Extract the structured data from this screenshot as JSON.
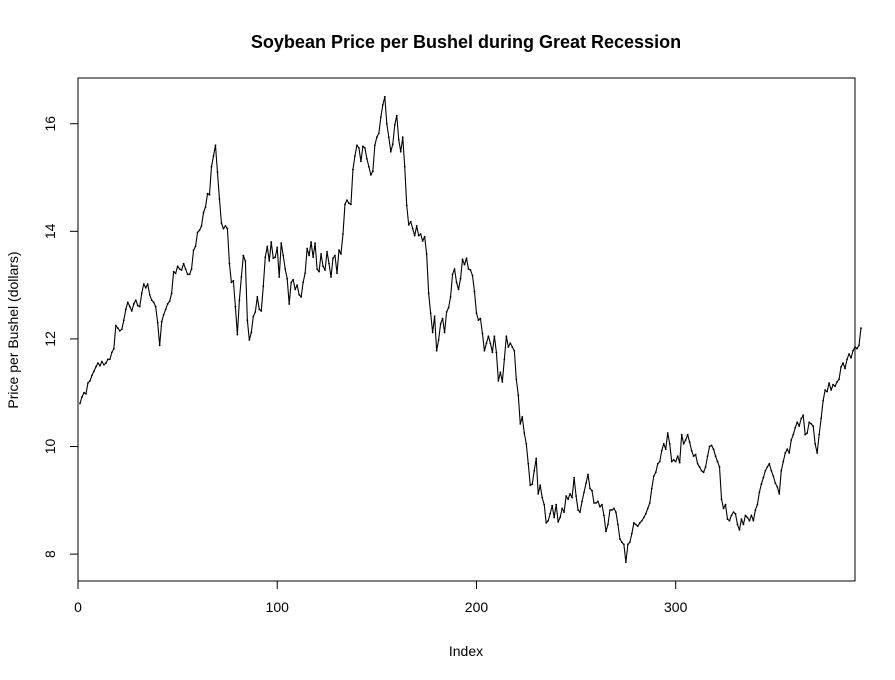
{
  "chart_data": {
    "type": "line",
    "title": "Soybean Price per Bushel during Great Recession",
    "xlabel": "Index",
    "ylabel": "Price per Bushel (dollars)",
    "xlim": [
      0,
      390
    ],
    "ylim": [
      7.5,
      16.85
    ],
    "x_ticks": [
      0,
      100,
      200,
      300
    ],
    "x_tick_labels": [
      "0",
      "100",
      "200",
      "300"
    ],
    "y_ticks": [
      8,
      10,
      12,
      14,
      16
    ],
    "y_tick_labels": [
      "8",
      "10",
      "12",
      "14",
      "16"
    ],
    "series": [
      {
        "x_start": 1,
        "marker": "point",
        "values": [
          10.8,
          10.92,
          11.0,
          10.98,
          11.18,
          11.22,
          11.32,
          11.4,
          11.48,
          11.55,
          11.5,
          11.58,
          11.52,
          11.55,
          11.62,
          11.62,
          11.75,
          11.82,
          12.25,
          12.2,
          12.15,
          12.18,
          12.35,
          12.55,
          12.68,
          12.6,
          12.52,
          12.65,
          12.72,
          12.62,
          12.6,
          12.85,
          13.02,
          12.95,
          13.02,
          12.82,
          12.72,
          12.68,
          12.6,
          12.3,
          11.88,
          12.32,
          12.45,
          12.55,
          12.65,
          12.7,
          12.85,
          13.25,
          13.22,
          13.35,
          13.3,
          13.28,
          13.4,
          13.3,
          13.2,
          13.2,
          13.3,
          13.65,
          13.72,
          13.98,
          14.02,
          14.1,
          14.35,
          14.45,
          14.7,
          14.68,
          15.2,
          15.4,
          15.6,
          15.1,
          14.6,
          14.15,
          14.05,
          14.1,
          14.05,
          13.4,
          13.05,
          13.08,
          12.6,
          12.08,
          12.72,
          13.15,
          13.55,
          13.45,
          12.35,
          11.98,
          12.12,
          12.42,
          12.5,
          12.78,
          12.55,
          12.52,
          12.98,
          13.52,
          13.72,
          13.45,
          13.8,
          13.5,
          13.52,
          13.7,
          13.15,
          13.78,
          13.55,
          13.3,
          13.12,
          12.65,
          13.05,
          13.1,
          12.92,
          13.0,
          12.82,
          12.78,
          13.05,
          13.22,
          13.68,
          13.55,
          13.8,
          13.52,
          13.78,
          13.3,
          13.25,
          13.58,
          13.35,
          13.28,
          13.62,
          13.4,
          13.15,
          13.5,
          13.55,
          13.22,
          13.65,
          13.58,
          13.95,
          14.5,
          14.58,
          14.52,
          14.5,
          15.15,
          15.4,
          15.6,
          15.55,
          15.3,
          15.58,
          15.55,
          15.35,
          15.2,
          15.05,
          15.12,
          15.6,
          15.75,
          15.82,
          16.12,
          16.35,
          16.5,
          16.0,
          15.75,
          15.48,
          15.62,
          15.98,
          16.15,
          15.7,
          15.48,
          15.75,
          15.2,
          14.48,
          14.12,
          14.18,
          14.05,
          13.92,
          14.1,
          13.92,
          13.95,
          13.82,
          13.9,
          13.58,
          12.85,
          12.48,
          12.12,
          12.42,
          11.78,
          11.98,
          12.28,
          12.38,
          12.12,
          12.5,
          12.58,
          12.78,
          13.2,
          13.3,
          13.05,
          12.92,
          13.12,
          13.48,
          13.38,
          13.5,
          13.3,
          13.28,
          13.18,
          12.88,
          12.48,
          12.35,
          12.38,
          12.1,
          11.78,
          11.92,
          12.05,
          11.92,
          11.75,
          12.05,
          11.75,
          11.22,
          11.38,
          11.2,
          11.62,
          12.05,
          11.85,
          11.92,
          11.85,
          11.78,
          11.25,
          10.95,
          10.42,
          10.55,
          10.25,
          10.05,
          9.68,
          9.28,
          9.3,
          9.55,
          9.78,
          9.12,
          9.28,
          9.05,
          8.92,
          8.58,
          8.62,
          8.75,
          8.9,
          8.68,
          8.92,
          8.6,
          8.68,
          8.85,
          8.78,
          9.08,
          9.02,
          9.12,
          9.05,
          9.42,
          9.08,
          8.82,
          8.78,
          8.98,
          9.15,
          9.32,
          9.48,
          9.22,
          9.18,
          8.95,
          8.95,
          8.98,
          8.88,
          8.92,
          8.72,
          8.42,
          8.55,
          8.82,
          8.82,
          8.85,
          8.78,
          8.55,
          8.28,
          8.22,
          8.18,
          7.85,
          8.18,
          8.22,
          8.38,
          8.58,
          8.55,
          8.52,
          8.58,
          8.62,
          8.68,
          8.75,
          8.85,
          8.95,
          9.22,
          9.45,
          9.52,
          9.68,
          9.72,
          9.92,
          10.05,
          9.95,
          10.25,
          10.05,
          9.72,
          9.75,
          9.72,
          9.82,
          9.7,
          10.22,
          10.05,
          10.12,
          10.22,
          10.08,
          9.92,
          9.82,
          9.85,
          9.68,
          9.62,
          9.55,
          9.52,
          9.62,
          9.82,
          10.0,
          10.02,
          9.95,
          9.82,
          9.72,
          9.62,
          9.02,
          8.85,
          8.92,
          8.65,
          8.62,
          8.72,
          8.78,
          8.75,
          8.55,
          8.45,
          8.65,
          8.55,
          8.72,
          8.68,
          8.62,
          8.72,
          8.62,
          8.82,
          8.92,
          9.15,
          9.3,
          9.42,
          9.55,
          9.62,
          9.68,
          9.55,
          9.45,
          9.32,
          9.25,
          9.12,
          9.55,
          9.72,
          9.88,
          9.95,
          9.88,
          10.12,
          10.22,
          10.35,
          10.45,
          10.38,
          10.52,
          10.58,
          10.22,
          10.25,
          10.45,
          10.42,
          10.38,
          10.05,
          9.88,
          10.22,
          10.52,
          10.85,
          11.05,
          11.02,
          11.18,
          11.05,
          11.15,
          11.12,
          11.2,
          11.25,
          11.48,
          11.55,
          11.45,
          11.62,
          11.72,
          11.65,
          11.78,
          11.85,
          11.82,
          11.88,
          12.2
        ]
      }
    ]
  }
}
